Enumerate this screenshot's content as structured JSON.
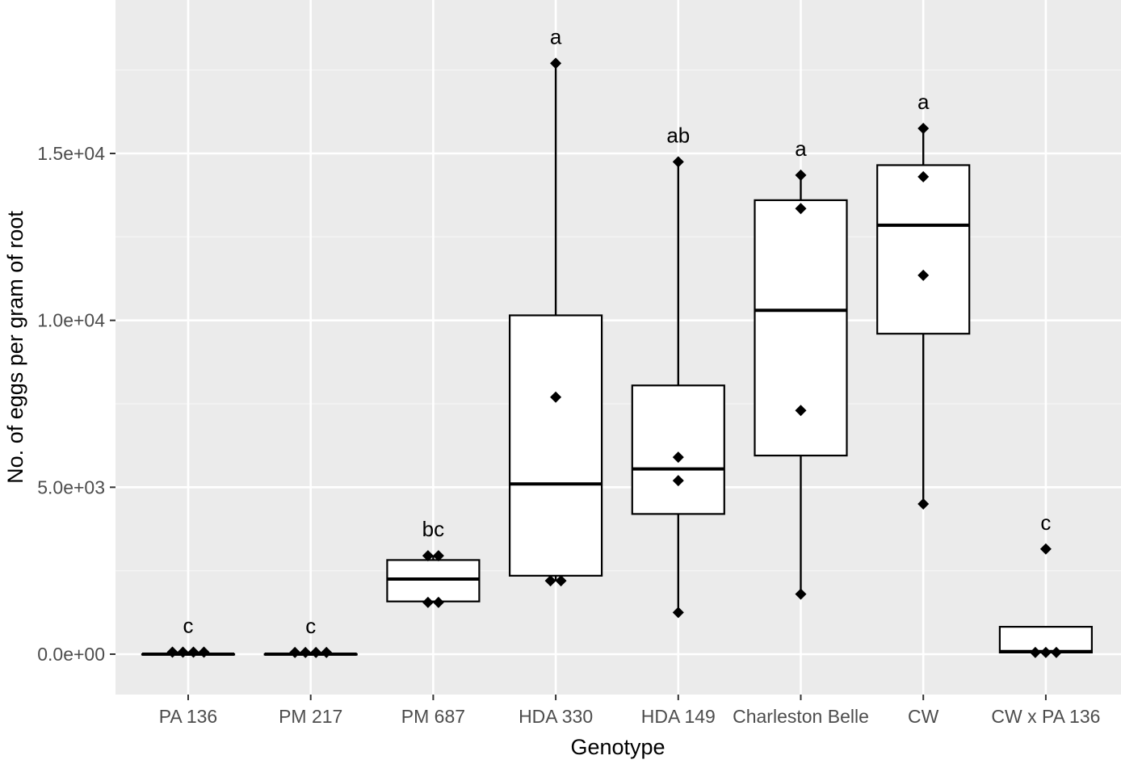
{
  "colors": {
    "panel_background": "#ebebeb",
    "grid_major": "#ffffff",
    "grid_minor": "#f5f5f5",
    "box_fill": "#ffffff",
    "box_stroke": "#000000",
    "point": "#000000",
    "tick_text": "#4d4d4d",
    "title_text": "#000000"
  },
  "chart_data": {
    "type": "boxplot",
    "title": "",
    "xlabel": "Genotype",
    "ylabel": "No. of eggs per gram of root",
    "ylim": [
      -1100,
      19500
    ],
    "y_ticks": [
      0,
      5000,
      10000,
      15000
    ],
    "y_tick_labels": [
      "0.0e+00",
      "5.0e+03",
      "1.0e+04",
      "1.5e+04"
    ],
    "grid": true,
    "legend": "none",
    "categories": [
      "PA 136",
      "PM 217",
      "PM 687",
      "HDA 330",
      "HDA 149",
      "Charleston Belle",
      "CW",
      "CW x PA 136"
    ],
    "boxes": [
      {
        "category": "PA 136",
        "min": 0,
        "q1": 0,
        "median": 0,
        "q3": 0,
        "max": 0,
        "points": [
          60,
          60,
          60,
          60
        ],
        "significance": "c"
      },
      {
        "category": "PM 217",
        "min": 0,
        "q1": 0,
        "median": 0,
        "q3": 0,
        "max": 0,
        "points": [
          50,
          50,
          50,
          50
        ],
        "significance": "c"
      },
      {
        "category": "PM 687",
        "min": 1550,
        "q1": 1580,
        "median": 2250,
        "q3": 2820,
        "max": 2950,
        "points": [
          2950,
          2950,
          1550,
          1550
        ],
        "significance": "bc"
      },
      {
        "category": "HDA 330",
        "min": 2200,
        "q1": 2350,
        "median": 5100,
        "q3": 10150,
        "max": 17700,
        "points": [
          17700,
          7700,
          2200,
          2200
        ],
        "significance": "a"
      },
      {
        "category": "HDA 149",
        "min": 1250,
        "q1": 4200,
        "median": 5550,
        "q3": 8050,
        "max": 14750,
        "points": [
          14750,
          5900,
          5200,
          1250
        ],
        "significance": "ab"
      },
      {
        "category": "Charleston Belle",
        "min": 1800,
        "q1": 5950,
        "median": 10300,
        "q3": 13600,
        "max": 14350,
        "points": [
          14350,
          13350,
          7300,
          1800
        ],
        "significance": "a"
      },
      {
        "category": "CW",
        "min": 4500,
        "q1": 9600,
        "median": 12850,
        "q3": 14650,
        "max": 15750,
        "points": [
          15750,
          14300,
          11350,
          4500
        ],
        "significance": "a"
      },
      {
        "category": "CW x PA 136",
        "min": 50,
        "q1": 50,
        "median": 80,
        "q3": 820,
        "max": 820,
        "points": [
          3150,
          50,
          50,
          50
        ],
        "significance": "c"
      }
    ]
  }
}
